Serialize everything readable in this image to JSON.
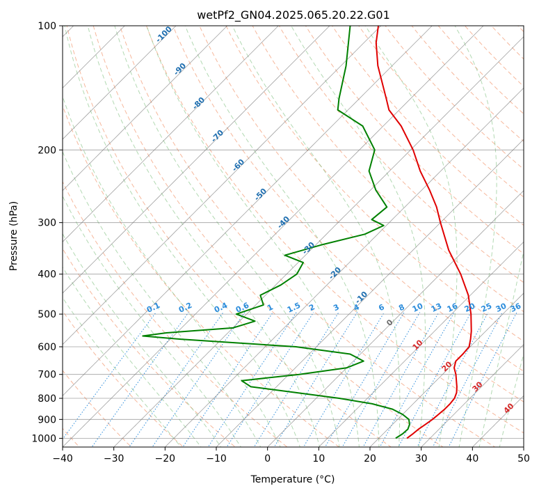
{
  "chart_data": {
    "type": "skew-t",
    "title": "wetPf2_GN04.2025.065.20.22.G01",
    "xlabel": "Temperature (°C)",
    "ylabel": "Pressure (hPa)",
    "xlim": [
      -40,
      50
    ],
    "ylim": [
      1050,
      100
    ],
    "y_scale": "log",
    "grid": true,
    "x_ticks": [
      -40,
      -30,
      -20,
      -10,
      0,
      10,
      20,
      30,
      40,
      50
    ],
    "y_ticks": [
      100,
      200,
      300,
      400,
      500,
      600,
      700,
      800,
      900,
      1000
    ],
    "dry_adiabat_labels": [
      "-100",
      "-90",
      "-80",
      "-70",
      "-60",
      "-50",
      "-40",
      "-30",
      "-20",
      "-10",
      "0",
      "10",
      "20",
      "30",
      "40"
    ],
    "mixing_ratio_labels": [
      "0.1",
      "0.2",
      "0.4",
      "0.6",
      "1",
      "1.5",
      "2",
      "3",
      "4",
      "6",
      "8",
      "10",
      "13",
      "16",
      "20",
      "25",
      "30",
      "36"
    ],
    "series": [
      {
        "color": "#e00000",
        "values": [
          {
            "p": 1000,
            "t": 25.5
          },
          {
            "p": 975,
            "t": 25.8
          },
          {
            "p": 950,
            "t": 26.0
          },
          {
            "p": 925,
            "t": 26.4
          },
          {
            "p": 900,
            "t": 26.8
          },
          {
            "p": 875,
            "t": 27.0
          },
          {
            "p": 850,
            "t": 27.2
          },
          {
            "p": 825,
            "t": 27.2
          },
          {
            "p": 800,
            "t": 27.0
          },
          {
            "p": 775,
            "t": 26.3
          },
          {
            "p": 750,
            "t": 25.2
          },
          {
            "p": 700,
            "t": 22.6
          },
          {
            "p": 675,
            "t": 21.0
          },
          {
            "p": 650,
            "t": 20.0
          },
          {
            "p": 625,
            "t": 20.0
          },
          {
            "p": 600,
            "t": 19.8
          },
          {
            "p": 575,
            "t": 18.6
          },
          {
            "p": 550,
            "t": 17.2
          },
          {
            "p": 500,
            "t": 13.8
          },
          {
            "p": 450,
            "t": 9.6
          },
          {
            "p": 400,
            "t": 4.0
          },
          {
            "p": 350,
            "t": -3.0
          },
          {
            "p": 300,
            "t": -10.0
          },
          {
            "p": 275,
            "t": -13.8
          },
          {
            "p": 250,
            "t": -18.5
          },
          {
            "p": 225,
            "t": -24.0
          },
          {
            "p": 200,
            "t": -29.5
          },
          {
            "p": 175,
            "t": -36.5
          },
          {
            "p": 160,
            "t": -42.0
          },
          {
            "p": 150,
            "t": -44.8
          },
          {
            "p": 125,
            "t": -52.8
          },
          {
            "p": 110,
            "t": -57.6
          },
          {
            "p": 100,
            "t": -60.5
          }
        ]
      },
      {
        "color": "#008000",
        "values": [
          {
            "p": 1000,
            "t": 23.3
          },
          {
            "p": 975,
            "t": 23.8
          },
          {
            "p": 950,
            "t": 23.9
          },
          {
            "p": 925,
            "t": 23.3
          },
          {
            "p": 900,
            "t": 22.2
          },
          {
            "p": 875,
            "t": 20.0
          },
          {
            "p": 850,
            "t": 17.0
          },
          {
            "p": 825,
            "t": 12.0
          },
          {
            "p": 800,
            "t": 4.5
          },
          {
            "p": 775,
            "t": -5.0
          },
          {
            "p": 750,
            "t": -15.0
          },
          {
            "p": 725,
            "t": -18.0
          },
          {
            "p": 700,
            "t": -8.0
          },
          {
            "p": 675,
            "t": 0.0
          },
          {
            "p": 650,
            "t": 2.0
          },
          {
            "p": 625,
            "t": -2.0
          },
          {
            "p": 600,
            "t": -14.0
          },
          {
            "p": 575,
            "t": -38.0
          },
          {
            "p": 565,
            "t": -46.0
          },
          {
            "p": 555,
            "t": -42.0
          },
          {
            "p": 540,
            "t": -30.0
          },
          {
            "p": 520,
            "t": -27.0
          },
          {
            "p": 500,
            "t": -32.0
          },
          {
            "p": 475,
            "t": -28.5
          },
          {
            "p": 450,
            "t": -31.0
          },
          {
            "p": 425,
            "t": -29.0
          },
          {
            "p": 400,
            "t": -28.0
          },
          {
            "p": 375,
            "t": -29.0
          },
          {
            "p": 360,
            "t": -34.0
          },
          {
            "p": 340,
            "t": -29.0
          },
          {
            "p": 320,
            "t": -22.5
          },
          {
            "p": 305,
            "t": -20.5
          },
          {
            "p": 295,
            "t": -24.0
          },
          {
            "p": 275,
            "t": -23.5
          },
          {
            "p": 250,
            "t": -29.0
          },
          {
            "p": 225,
            "t": -34.0
          },
          {
            "p": 200,
            "t": -37.0
          },
          {
            "p": 175,
            "t": -44.0
          },
          {
            "p": 160,
            "t": -52.0
          },
          {
            "p": 150,
            "t": -54.0
          },
          {
            "p": 125,
            "t": -59.0
          },
          {
            "p": 100,
            "t": -66.0
          }
        ]
      }
    ]
  }
}
